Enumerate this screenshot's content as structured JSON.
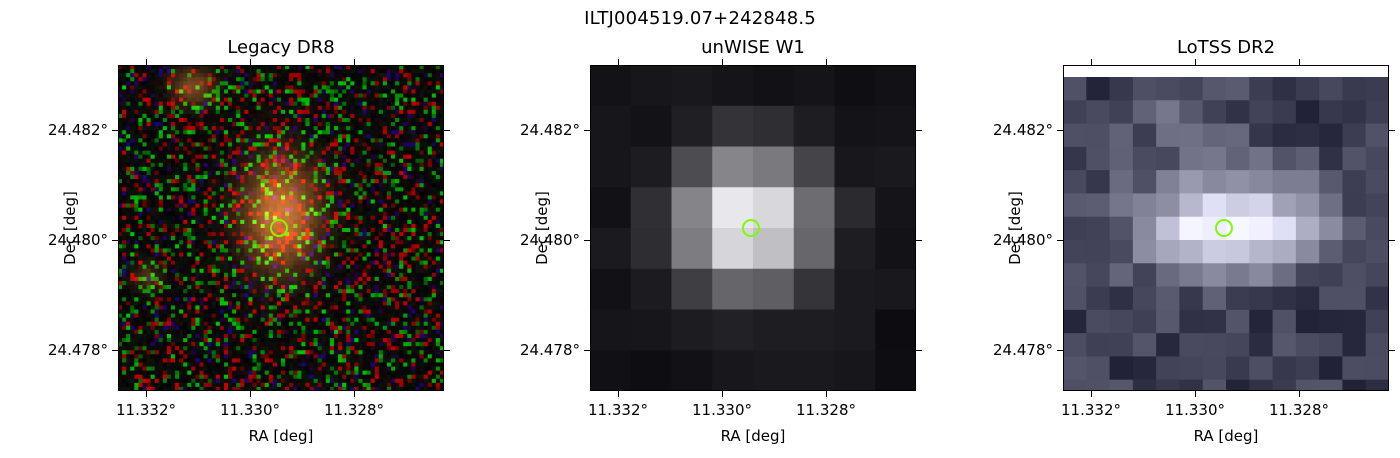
{
  "figure": {
    "title": "ILTJ004519.07+242848.5"
  },
  "panels": [
    {
      "id": "legacy",
      "title": "Legacy DR8",
      "xlabel": "RA [deg]",
      "ylabel": "Dec [deg]",
      "yticks": [
        "24.482°",
        "24.480°",
        "24.478°"
      ],
      "xticks": [
        "11.332°",
        "11.330°",
        "11.328°"
      ]
    },
    {
      "id": "unwise",
      "title": "unWISE W1",
      "xlabel": "RA [deg]",
      "ylabel": "Dec [deg]",
      "yticks": [
        "24.482°",
        "24.480°",
        "24.478°"
      ],
      "xticks": [
        "11.332°",
        "11.330°",
        "11.328°"
      ]
    },
    {
      "id": "lotss",
      "title": "LoTSS DR2",
      "xlabel": "RA [deg]",
      "ylabel": "Dec [deg]",
      "yticks": [
        "24.482°",
        "24.480°",
        "24.478°"
      ],
      "xticks": [
        "11.332°",
        "11.330°",
        "11.328°"
      ]
    }
  ],
  "colors": {
    "marker": "#7cfc00"
  }
}
